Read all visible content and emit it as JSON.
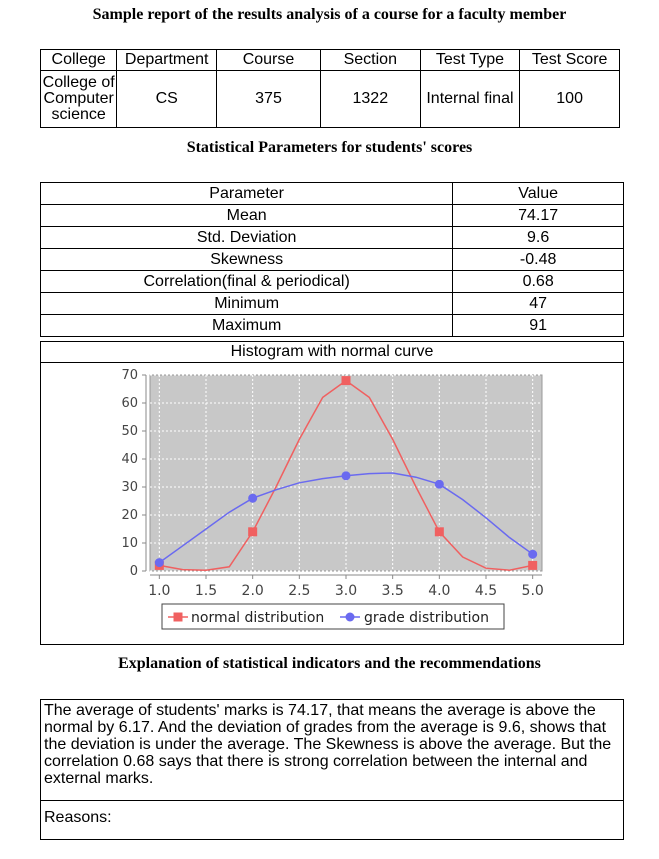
{
  "report_title": "Sample report of the results analysis of a course for a faculty member",
  "info_table": {
    "headers": [
      "College",
      "Department",
      "Course",
      "Section",
      "Test Type",
      "Test Score"
    ],
    "values": [
      "College of Computer science",
      "CS",
      "375",
      "1322",
      "Internal final",
      "100"
    ]
  },
  "stats_heading": "Statistical Parameters for students' scores",
  "stats_table": {
    "headers": [
      "Parameter",
      "Value"
    ],
    "rows": [
      [
        "Mean",
        "74.17"
      ],
      [
        "Std. Deviation",
        "9.6"
      ],
      [
        "Skewness",
        "-0.48"
      ],
      [
        "Correlation(final & periodical)",
        "0.68"
      ],
      [
        "Minimum",
        "47"
      ],
      [
        "Maximum",
        "91"
      ]
    ]
  },
  "chart_data": {
    "type": "line",
    "title": "Histogram with normal curve",
    "xlabel": "",
    "ylabel": "",
    "xlim": [
      0.9,
      5.1
    ],
    "ylim": [
      0,
      70
    ],
    "x_ticks": [
      "1.0",
      "1.5",
      "2.0",
      "2.5",
      "3.0",
      "3.5",
      "4.0",
      "4.5",
      "5.0"
    ],
    "y_ticks": [
      "0",
      "10",
      "20",
      "30",
      "40",
      "50",
      "60",
      "70"
    ],
    "grid": true,
    "legend_position": "bottom",
    "colors": {
      "plot_bg": "#c8c8c8",
      "normal": "#f06060",
      "grade": "#6a6af0"
    },
    "series": [
      {
        "name": "normal distribution",
        "marker": "square",
        "points": [
          [
            1.0,
            2
          ],
          [
            2.0,
            14
          ],
          [
            3.0,
            68
          ],
          [
            4.0,
            14
          ],
          [
            5.0,
            2
          ]
        ],
        "curve": [
          [
            1.0,
            2
          ],
          [
            1.25,
            0.5
          ],
          [
            1.5,
            0.3
          ],
          [
            1.75,
            1.5
          ],
          [
            2.0,
            14
          ],
          [
            2.25,
            30
          ],
          [
            2.5,
            47
          ],
          [
            2.75,
            62
          ],
          [
            3.0,
            68
          ],
          [
            3.25,
            62
          ],
          [
            3.5,
            47
          ],
          [
            3.75,
            30
          ],
          [
            4.0,
            14
          ],
          [
            4.25,
            5
          ],
          [
            4.5,
            1
          ],
          [
            4.75,
            0.3
          ],
          [
            5.0,
            2
          ]
        ]
      },
      {
        "name": "grade distribution",
        "marker": "circle",
        "points": [
          [
            1.0,
            3
          ],
          [
            2.0,
            26
          ],
          [
            3.0,
            34
          ],
          [
            4.0,
            31
          ],
          [
            5.0,
            6
          ]
        ],
        "curve": [
          [
            1.0,
            3
          ],
          [
            1.25,
            9
          ],
          [
            1.5,
            15
          ],
          [
            1.75,
            21
          ],
          [
            2.0,
            26
          ],
          [
            2.25,
            29
          ],
          [
            2.5,
            31.5
          ],
          [
            2.75,
            33
          ],
          [
            3.0,
            34
          ],
          [
            3.25,
            34.8
          ],
          [
            3.5,
            35
          ],
          [
            3.75,
            33.5
          ],
          [
            4.0,
            31
          ],
          [
            4.25,
            25.5
          ],
          [
            4.5,
            19
          ],
          [
            4.75,
            12
          ],
          [
            5.0,
            6
          ]
        ]
      }
    ]
  },
  "explanation_heading": "Explanation of statistical indicators and the recommendations",
  "explanation_text": "The average of students' marks is 74.17, that means the average is above the normal by 6.17. And the deviation of grades from the average is 9.6, shows that the deviation is  under  the average. The Skewness is above the average. But the correlation 0.68 says that there is strong correlation between the internal and external marks.",
  "reasons_label": "Reasons:"
}
